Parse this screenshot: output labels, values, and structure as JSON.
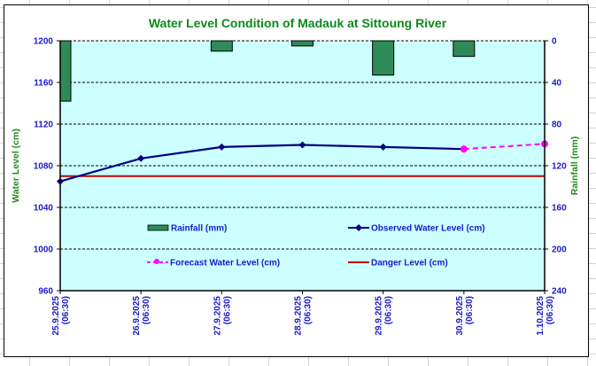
{
  "chart_data": {
    "type": "line",
    "title": "Water Level Condition of Madauk at Sittoung River",
    "xlabel": "",
    "ylabel": "Water Level (cm)",
    "y2label": "Rainfall (mm)",
    "categories": [
      "25.9.2025|(06:30)",
      "26.9.2025|(06:30)",
      "27.9.2025|(06:30)",
      "28.9.2025|(06:30)",
      "29.9.2025|(06:30)",
      "30.9.2025|(06:30)",
      "1.10.2025|(06:30)"
    ],
    "ylim": [
      960,
      1200
    ],
    "yticks": [
      960,
      1000,
      1040,
      1080,
      1120,
      1160,
      1200
    ],
    "y2lim": [
      0,
      240
    ],
    "y2ticks": [
      0,
      40,
      80,
      120,
      160,
      200,
      240
    ],
    "y2_inverted": true,
    "grid": true,
    "legend_position": "inside-lower-middle",
    "series": [
      {
        "name": "Rainfall (mm)",
        "type": "bar",
        "axis": "right",
        "color": "#2e8b57",
        "values": [
          58,
          null,
          10,
          5,
          33,
          15,
          null
        ]
      },
      {
        "name": "Observed Water Level (cm)",
        "type": "line",
        "axis": "left",
        "color": "#000080",
        "marker": "diamond",
        "values": [
          1065,
          1087,
          1098,
          1100,
          1098,
          1096,
          null
        ]
      },
      {
        "name": "Forecast Water Level (cm)",
        "type": "line",
        "axis": "left",
        "color": "#ff00ff",
        "marker": "circle",
        "dashed": true,
        "values": [
          null,
          null,
          null,
          null,
          null,
          1096,
          1101
        ]
      },
      {
        "name": "Danger Level (cm)",
        "type": "line",
        "axis": "left",
        "color": "#c00000",
        "values": [
          1070,
          1070,
          1070,
          1070,
          1070,
          1070,
          1070
        ]
      }
    ]
  },
  "colors": {
    "plot_background": "#ccffff",
    "title": "#0a8a1a",
    "tick_labels": "#1a1acc"
  }
}
